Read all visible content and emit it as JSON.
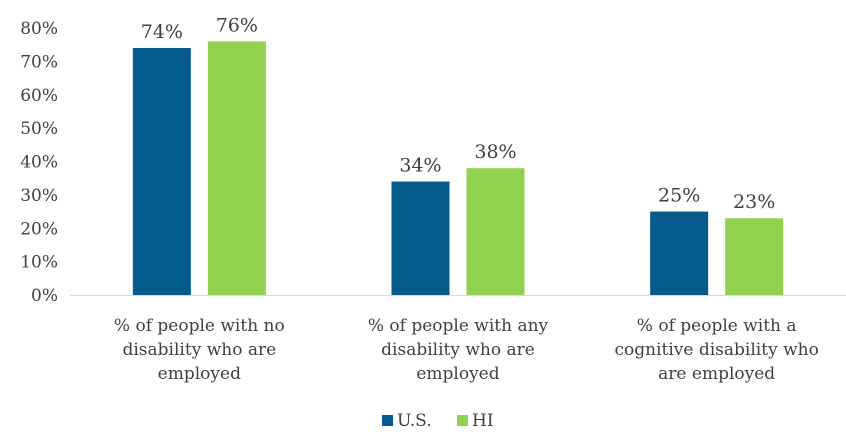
{
  "chart_data": {
    "type": "bar",
    "categories": [
      [
        "% of people with no",
        "disability who are",
        "employed"
      ],
      [
        "% of people with any",
        "disability who are",
        "employed"
      ],
      [
        "% of people with a",
        "cognitive disability who",
        "are employed"
      ]
    ],
    "series": [
      {
        "name": "U.S.",
        "color": "#055A8C",
        "values": [
          74,
          34,
          25
        ],
        "labels": [
          "74%",
          "34%",
          "25%"
        ]
      },
      {
        "name": "HI",
        "color": "#92D050",
        "values": [
          76,
          38,
          23
        ],
        "labels": [
          "76%",
          "38%",
          "23%"
        ]
      }
    ],
    "ylim": [
      0,
      80
    ],
    "ytick_values": [
      0,
      10,
      20,
      30,
      40,
      50,
      60,
      70,
      80
    ],
    "ytick_labels": [
      "0%",
      "10%",
      "20%",
      "30%",
      "40%",
      "50%",
      "60%",
      "70%",
      "80%"
    ],
    "grid": false,
    "legend_position": "bottom",
    "axis_color": "#D9D9D9"
  }
}
